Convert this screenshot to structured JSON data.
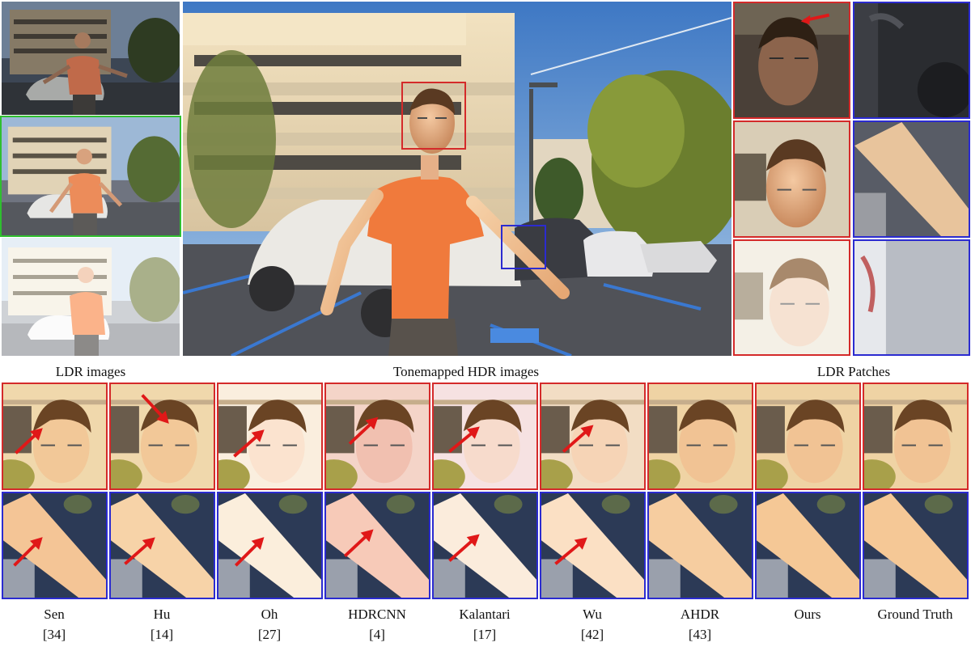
{
  "captions": {
    "ldr_images": "LDR images",
    "tonemapped": "Tonemapped HDR images",
    "ldr_patches": "LDR Patches"
  },
  "methods": [
    {
      "name": "Sen",
      "ref": "[34]"
    },
    {
      "name": "Hu",
      "ref": "[14]"
    },
    {
      "name": "Oh",
      "ref": "[27]"
    },
    {
      "name": "HDRCNN",
      "ref": "[4]"
    },
    {
      "name": "Kalantari",
      "ref": "[17]"
    },
    {
      "name": "Wu",
      "ref": "[42]"
    },
    {
      "name": "AHDR",
      "ref": "[43]"
    },
    {
      "name": "Ours",
      "ref": ""
    },
    {
      "name": "Ground Truth",
      "ref": ""
    }
  ],
  "colors": {
    "face_border": "#d42a2a",
    "arm_border": "#2b2bd0",
    "reference_border": "#2fbf2f",
    "arrow": "#e01818"
  }
}
